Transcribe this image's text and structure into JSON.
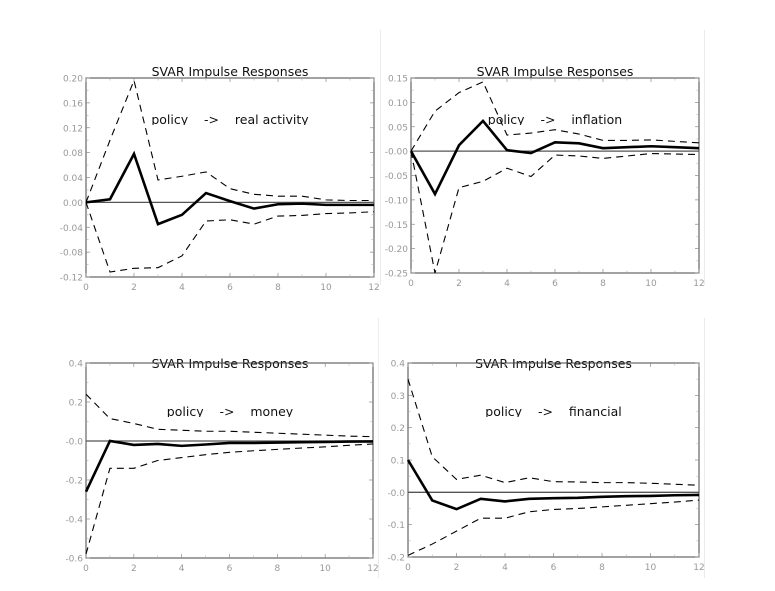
{
  "chart_data": [
    {
      "type": "line",
      "title": "SVAR Impulse Responses",
      "subtitle": "policy    ->    real activity",
      "xlabel": "",
      "ylabel": "",
      "xlim": [
        0,
        12
      ],
      "ylim": [
        -0.12,
        0.2
      ],
      "xticks": [
        0,
        2,
        4,
        6,
        8,
        10,
        12
      ],
      "xtick_labels": [
        "0",
        "2",
        "4",
        "6",
        "8",
        "10",
        "12"
      ],
      "yticks": [
        -0.12,
        -0.08,
        -0.04,
        0.0,
        0.04,
        0.08,
        0.12,
        0.16,
        0.2
      ],
      "ytick_labels": [
        "-0.12",
        "-0.08",
        "-0.04",
        "0.00",
        "0.04",
        "0.08",
        "0.12",
        "0.16",
        "0.20"
      ],
      "grid": false,
      "legend": "none",
      "x": [
        0,
        1,
        2,
        3,
        4,
        5,
        6,
        7,
        8,
        9,
        10,
        11,
        12
      ],
      "series": [
        {
          "name": "response",
          "style": "solid",
          "values": [
            0,
            0.005,
            0.078,
            -0.035,
            -0.02,
            0.015,
            0.002,
            -0.01,
            -0.003,
            -0.002,
            -0.004,
            -0.004,
            -0.004
          ]
        },
        {
          "name": "upper band",
          "style": "dashed",
          "values": [
            0,
            0.1,
            0.196,
            0.036,
            0.042,
            0.049,
            0.022,
            0.013,
            0.01,
            0.01,
            0.004,
            0.003,
            0.003
          ]
        },
        {
          "name": "lower band",
          "style": "dashed",
          "values": [
            0,
            -0.112,
            -0.106,
            -0.105,
            -0.086,
            -0.03,
            -0.028,
            -0.035,
            -0.022,
            -0.021,
            -0.018,
            -0.017,
            -0.015
          ]
        }
      ]
    },
    {
      "type": "line",
      "title": "SVAR Impulse Responses",
      "subtitle": "policy    ->    inflation",
      "xlabel": "",
      "ylabel": "",
      "xlim": [
        0,
        12
      ],
      "ylim": [
        -0.25,
        0.15
      ],
      "xticks": [
        0,
        2,
        4,
        6,
        8,
        10,
        12
      ],
      "xtick_labels": [
        "0",
        "2",
        "4",
        "6",
        "8",
        "10",
        "12"
      ],
      "yticks": [
        -0.25,
        -0.2,
        -0.15,
        -0.1,
        -0.05,
        0.0,
        0.05,
        0.1,
        0.15
      ],
      "ytick_labels": [
        "-0.25",
        "-0.20",
        "-0.15",
        "-0.10",
        "-0.05",
        "-0.00",
        "0.05",
        "0.10",
        "0.15"
      ],
      "grid": false,
      "legend": "none",
      "x": [
        0,
        1,
        2,
        3,
        4,
        5,
        6,
        7,
        8,
        9,
        10,
        11,
        12
      ],
      "series": [
        {
          "name": "response",
          "style": "solid",
          "values": [
            0,
            -0.088,
            0.012,
            0.062,
            0.002,
            -0.004,
            0.018,
            0.016,
            0.006,
            0.008,
            0.01,
            0.008,
            0.006
          ]
        },
        {
          "name": "upper band",
          "style": "dashed",
          "values": [
            0,
            0.082,
            0.12,
            0.142,
            0.033,
            0.037,
            0.044,
            0.035,
            0.022,
            0.022,
            0.023,
            0.02,
            0.017
          ]
        },
        {
          "name": "lower band",
          "style": "dashed",
          "values": [
            0,
            -0.25,
            -0.075,
            -0.062,
            -0.035,
            -0.052,
            -0.008,
            -0.01,
            -0.015,
            -0.01,
            -0.005,
            -0.006,
            -0.007
          ]
        }
      ]
    },
    {
      "type": "line",
      "title": "SVAR Impulse Responses",
      "subtitle": "policy    ->    money",
      "xlabel": "",
      "ylabel": "",
      "xlim": [
        0,
        12
      ],
      "ylim": [
        -0.6,
        0.4
      ],
      "xticks": [
        0,
        2,
        4,
        6,
        8,
        10,
        12
      ],
      "xtick_labels": [
        "0",
        "2",
        "4",
        "6",
        "8",
        "10",
        "12"
      ],
      "yticks": [
        -0.6,
        -0.4,
        -0.2,
        0.0,
        0.2,
        0.4
      ],
      "ytick_labels": [
        "-0.6",
        "-0.4",
        "-0.2",
        "-0.0",
        "0.2",
        "0.4"
      ],
      "grid": false,
      "legend": "none",
      "x": [
        0,
        1,
        2,
        3,
        4,
        5,
        6,
        7,
        8,
        9,
        10,
        11,
        12
      ],
      "series": [
        {
          "name": "response",
          "style": "solid",
          "values": [
            -0.26,
            0,
            -0.02,
            -0.015,
            -0.025,
            -0.018,
            -0.01,
            -0.01,
            -0.008,
            -0.006,
            -0.005,
            -0.003,
            -0.002
          ]
        },
        {
          "name": "upper band",
          "style": "dashed",
          "values": [
            0.24,
            0.115,
            0.09,
            0.06,
            0.055,
            0.05,
            0.05,
            0.045,
            0.04,
            0.035,
            0.03,
            0.025,
            0.022
          ]
        },
        {
          "name": "lower band",
          "style": "dashed",
          "values": [
            -0.58,
            -0.14,
            -0.14,
            -0.1,
            -0.085,
            -0.07,
            -0.058,
            -0.05,
            -0.043,
            -0.036,
            -0.03,
            -0.022,
            -0.015
          ]
        }
      ]
    },
    {
      "type": "line",
      "title": "SVAR Impulse Responses",
      "subtitle": "policy    ->    financial",
      "xlabel": "",
      "ylabel": "",
      "xlim": [
        0,
        12
      ],
      "ylim": [
        -0.2,
        0.4
      ],
      "xticks": [
        0,
        2,
        4,
        6,
        8,
        10,
        12
      ],
      "xtick_labels": [
        "0",
        "2",
        "4",
        "6",
        "8",
        "10",
        "12"
      ],
      "yticks": [
        -0.2,
        -0.1,
        0.0,
        0.1,
        0.2,
        0.3,
        0.4
      ],
      "ytick_labels": [
        "-0.2",
        "-0.1",
        "-0.0",
        "0.1",
        "0.2",
        "0.3",
        "0.4"
      ],
      "grid": false,
      "legend": "none",
      "x": [
        0,
        1,
        2,
        3,
        4,
        5,
        6,
        7,
        8,
        9,
        10,
        11,
        12
      ],
      "series": [
        {
          "name": "response",
          "style": "solid",
          "values": [
            0.1,
            -0.025,
            -0.052,
            -0.02,
            -0.028,
            -0.02,
            -0.018,
            -0.017,
            -0.014,
            -0.012,
            -0.011,
            -0.009,
            -0.008
          ]
        },
        {
          "name": "upper band",
          "style": "dashed",
          "values": [
            0.35,
            0.11,
            0.04,
            0.053,
            0.03,
            0.045,
            0.033,
            0.032,
            0.03,
            0.03,
            0.028,
            0.025,
            0.022
          ]
        },
        {
          "name": "lower band",
          "style": "dashed",
          "values": [
            -0.195,
            -0.16,
            -0.12,
            -0.08,
            -0.08,
            -0.06,
            -0.053,
            -0.05,
            -0.045,
            -0.04,
            -0.035,
            -0.03,
            -0.024
          ]
        }
      ]
    }
  ],
  "colors": {
    "line": "#000000",
    "axis_frame": "#444444",
    "tick_label": "#999999",
    "zero_line": "#555555"
  }
}
